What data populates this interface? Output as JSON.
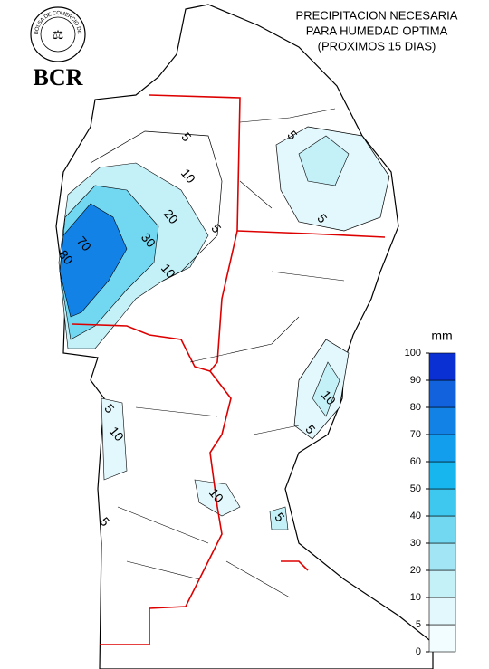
{
  "header": {
    "logo_ring": "BOLSA DE COMERCIO DE ROSARIO",
    "logo_name": "BCR",
    "title_lines": [
      "PRECIPITACION NECESARIA",
      "PARA HUMEDAD OPTIMA",
      "(PROXIMOS 15 DIAS)"
    ]
  },
  "legend": {
    "unit": "mm",
    "ticks": [
      0,
      5,
      10,
      20,
      30,
      40,
      50,
      60,
      70,
      80,
      90,
      100
    ],
    "colors": [
      "#f2fdff",
      "#e2f8fc",
      "#c4f0f8",
      "#a2e6f6",
      "#72d8f2",
      "#3ec8f0",
      "#18b6ee",
      "#129eec",
      "#1282e6",
      "#1262de",
      "#0a30d4"
    ]
  },
  "contour_labels": [
    5,
    10,
    20,
    5,
    30,
    10,
    70,
    80,
    5,
    5,
    10,
    5,
    5,
    10,
    10,
    5,
    5
  ]
}
